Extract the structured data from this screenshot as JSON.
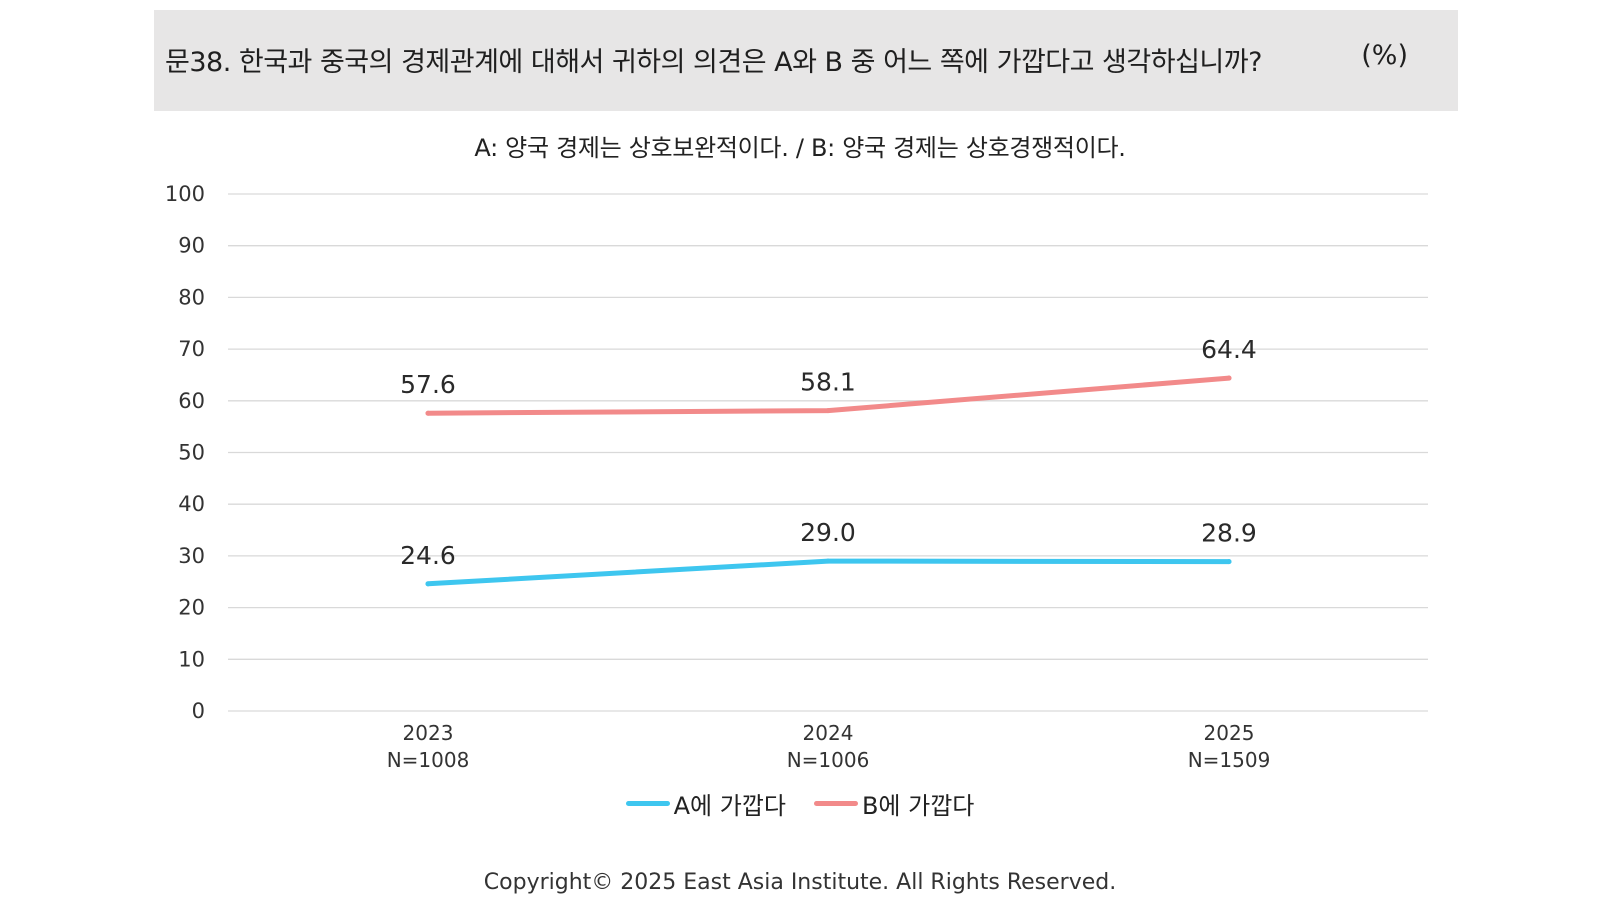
{
  "header": {
    "question": "문38. 한국과 중국의 경제관계에 대해서 귀하의 의견은 A와 B 중 어느 쪽에 가깝다고 생각하십니까?",
    "unit": "(%)"
  },
  "chart_data": {
    "type": "line",
    "title": "문38. 한국과 중국의 경제관계에 대해서 귀하의 의견은 A와 B 중 어느 쪽에 가깝다고 생각하십니까?",
    "subtitle": "A: 양국 경제는 상호보완적이다. / B: 양국 경제는 상호경쟁적이다.",
    "categories": [
      "2023",
      "2024",
      "2025"
    ],
    "sample_sizes": [
      "N=1008",
      "N=1006",
      "N=1509"
    ],
    "ylim": [
      0,
      100
    ],
    "yticks": [
      "0",
      "10",
      "20",
      "30",
      "40",
      "50",
      "60",
      "70",
      "80",
      "90",
      "100"
    ],
    "grid": true,
    "legend_position": "bottom",
    "series": [
      {
        "name": "A에 가깝다",
        "color": "#3ec6ef",
        "values": [
          24.6,
          29.0,
          28.9
        ],
        "labels": [
          "24.6",
          "29.0",
          "28.9"
        ]
      },
      {
        "name": "B에 가깝다",
        "color": "#f28a8a",
        "values": [
          57.6,
          58.1,
          64.4
        ],
        "labels": [
          "57.6",
          "58.1",
          "64.4"
        ]
      }
    ]
  },
  "footer": {
    "copyright": "Copyright© 2025 East Asia Institute. All Rights Reserved."
  }
}
